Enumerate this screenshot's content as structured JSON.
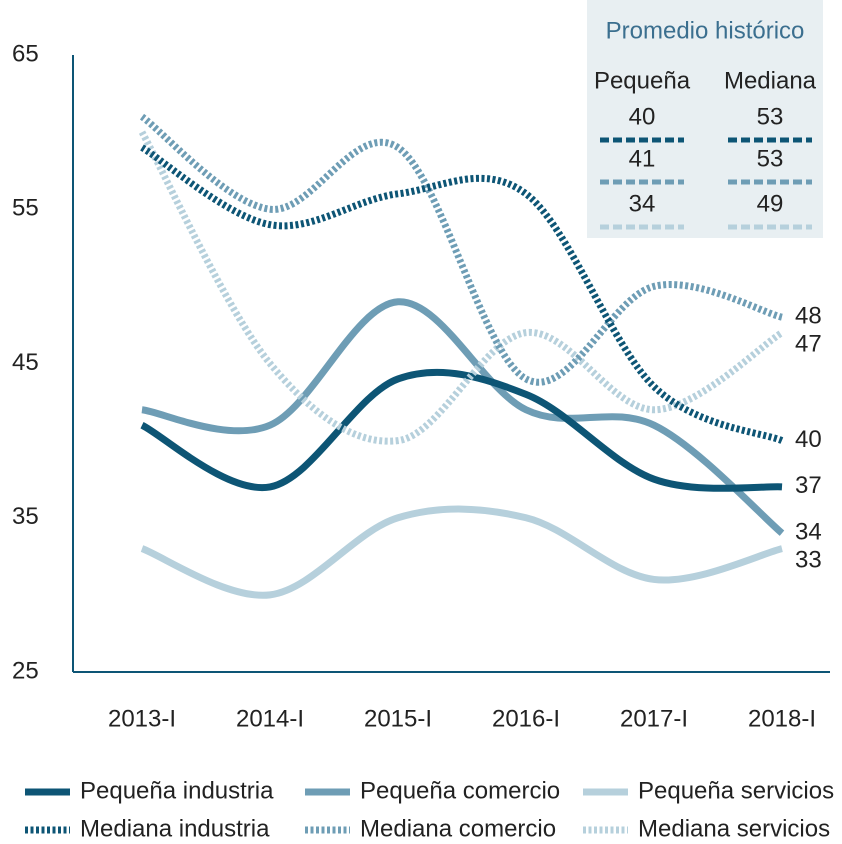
{
  "chart_data": {
    "type": "line",
    "categories": [
      "2013-I",
      "2014-I",
      "2015-I",
      "2016-I",
      "2017-I",
      "2018-I"
    ],
    "series": [
      {
        "name": "Pequeña industria",
        "color": "#0d5575",
        "dash": false,
        "values": [
          41,
          37,
          44,
          43,
          37.5,
          37
        ]
      },
      {
        "name": "Pequeña comercio",
        "color": "#6e9db5",
        "dash": false,
        "values": [
          42,
          41,
          49,
          42,
          41,
          34
        ]
      },
      {
        "name": "Pequeña servicios",
        "color": "#b6d0dc",
        "dash": false,
        "values": [
          33,
          30,
          35,
          35,
          31,
          33
        ]
      },
      {
        "name": "Mediana industria",
        "color": "#0d5575",
        "dash": true,
        "values": [
          59,
          54,
          56,
          56,
          43.5,
          40
        ]
      },
      {
        "name": "Mediana comercio",
        "color": "#6e9db5",
        "dash": true,
        "values": [
          61,
          55,
          59,
          44,
          50,
          48
        ]
      },
      {
        "name": "Mediana servicios",
        "color": "#b6d0dc",
        "dash": true,
        "values": [
          60,
          45,
          40,
          47,
          42,
          47
        ]
      }
    ],
    "ylim": [
      25,
      65
    ],
    "yticks": [
      25,
      35,
      45,
      55,
      65
    ],
    "inset": {
      "title": "Promedio histórico",
      "columns": [
        "Pequeña",
        "Mediana"
      ],
      "rows": [
        [
          40,
          53
        ],
        [
          41,
          53
        ],
        [
          34,
          49
        ]
      ]
    }
  }
}
